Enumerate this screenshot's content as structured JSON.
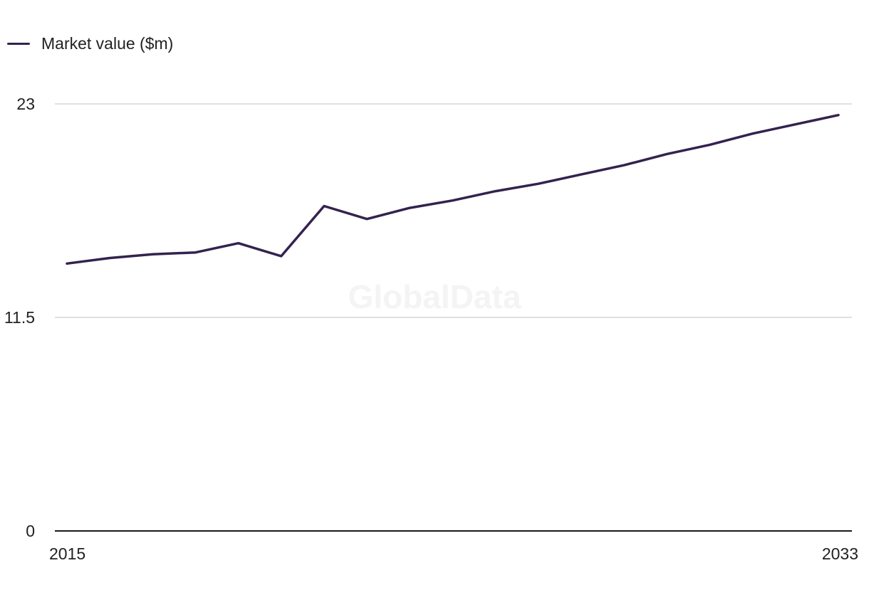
{
  "chart_data": {
    "type": "line",
    "title": "",
    "xlabel": "",
    "ylabel": "",
    "x": [
      2015,
      2016,
      2017,
      2018,
      2019,
      2020,
      2021,
      2022,
      2023,
      2024,
      2025,
      2026,
      2027,
      2028,
      2029,
      2030,
      2031,
      2032,
      2033
    ],
    "series": [
      {
        "name": "Market value ($m)",
        "color": "#34224f",
        "values": [
          14.4,
          14.7,
          14.9,
          15.0,
          15.5,
          14.8,
          17.5,
          16.8,
          17.4,
          17.8,
          18.3,
          18.7,
          19.2,
          19.7,
          20.3,
          20.8,
          21.4,
          21.9,
          22.4
        ]
      }
    ],
    "ylim": [
      0,
      23
    ],
    "yticks": [
      "0",
      "11.5",
      "23"
    ],
    "xtick_labels": [
      "2015",
      "2033"
    ],
    "grid": true,
    "legend": "top-left"
  },
  "watermark": "GlobalData"
}
